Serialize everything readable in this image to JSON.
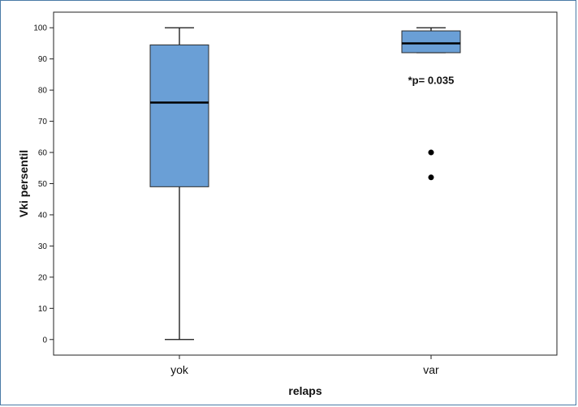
{
  "chart_data": {
    "type": "box",
    "xlabel": "relaps",
    "ylabel": "Vki persentil",
    "ylim": [
      -5,
      105
    ],
    "yticks": [
      0,
      10,
      20,
      30,
      40,
      50,
      60,
      70,
      80,
      90,
      100
    ],
    "grid": false,
    "categories": [
      "yok",
      "var"
    ],
    "boxes": [
      {
        "category": "yok",
        "min": 0,
        "q1": 49,
        "median": 76,
        "q3": 94.5,
        "max": 100,
        "outliers": []
      },
      {
        "category": "var",
        "min": 92,
        "q1": 92,
        "median": 95,
        "q3": 99,
        "max": 100,
        "outliers": [
          60,
          52
        ]
      }
    ],
    "annotations": [
      {
        "text": "*p= 0.035",
        "x": "var",
        "y": 82
      }
    ],
    "colors": {
      "box_fill": "#6a9fd6",
      "box_stroke": "#2a2a2a",
      "median": "#000000"
    }
  }
}
